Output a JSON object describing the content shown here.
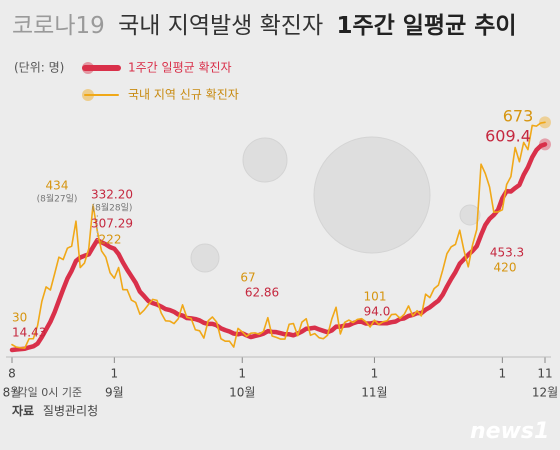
{
  "chart_data": {
    "type": "line",
    "title": {
      "prefix": "코로나19",
      "main": "국내 지역발생 확진자",
      "strong": "1주간 일평균 추이"
    },
    "unit_label": "(단위: 명)",
    "note": "*각일 0시 기준",
    "source": {
      "label": "자료",
      "text": "질병관리청"
    },
    "brand": "news1",
    "categories": [
      "08-08",
      "08-09",
      "08-10",
      "08-11",
      "08-12",
      "08-13",
      "08-14",
      "08-15",
      "08-16",
      "08-17",
      "08-18",
      "08-19",
      "08-20",
      "08-21",
      "08-22",
      "08-23",
      "08-24",
      "08-25",
      "08-26",
      "08-27",
      "08-28",
      "08-29",
      "08-30",
      "08-31",
      "09-01",
      "09-02",
      "09-03",
      "09-04",
      "09-05",
      "09-06",
      "09-07",
      "09-08",
      "09-09",
      "09-10",
      "09-11",
      "09-12",
      "09-13",
      "09-14",
      "09-15",
      "09-16",
      "09-17",
      "09-18",
      "09-19",
      "09-20",
      "09-21",
      "09-22",
      "09-23",
      "09-24",
      "09-25",
      "09-26",
      "09-27",
      "09-28",
      "09-29",
      "09-30",
      "10-01",
      "10-02",
      "10-03",
      "10-04",
      "10-05",
      "10-06",
      "10-07",
      "10-08",
      "10-09",
      "10-10",
      "10-11",
      "10-12",
      "10-13",
      "10-14",
      "10-15",
      "10-16",
      "10-17",
      "10-18",
      "10-19",
      "10-20",
      "10-21",
      "10-22",
      "10-23",
      "10-24",
      "10-25",
      "10-26",
      "10-27",
      "10-28",
      "10-29",
      "10-30",
      "10-31",
      "11-01",
      "11-02",
      "11-03",
      "11-04",
      "11-05",
      "11-06",
      "11-07",
      "11-08",
      "11-09",
      "11-10",
      "11-11",
      "11-12",
      "11-13",
      "11-14",
      "11-15",
      "11-16",
      "11-17",
      "11-18",
      "11-19",
      "11-20",
      "11-21",
      "11-22",
      "11-23",
      "11-24",
      "11-25",
      "11-26",
      "11-27",
      "11-28",
      "11-29",
      "11-30",
      "12-01",
      "12-02",
      "12-03",
      "12-04",
      "12-05",
      "12-06",
      "12-07",
      "12-08",
      "12-09",
      "12-10",
      "12-11"
    ],
    "series": [
      {
        "name": "1주간 일평균 확진자",
        "color": "#d9304a",
        "values": [
          14.43,
          16,
          17,
          18,
          22,
          25,
          33,
          52,
          74,
          96,
          124,
          157,
          190,
          221,
          244,
          272,
          282,
          287,
          291,
          312,
          332.2,
          326,
          320,
          312,
          307.29,
          292,
          268,
          247,
          228,
          209,
          183,
          170,
          156,
          150,
          146,
          140,
          133,
          130,
          125,
          117,
          114,
          107,
          106,
          104,
          100,
          93,
          90,
          90,
          86,
          77,
          72,
          68,
          62,
          60,
          62.86,
          57,
          52,
          55,
          58,
          62,
          69,
          67,
          66,
          63,
          60,
          60,
          57,
          62,
          68,
          76,
          77,
          79,
          74,
          70,
          66,
          71,
          82,
          82,
          85,
          86,
          92,
          96,
          96,
          91,
          91,
          94,
          92,
          92,
          92,
          95,
          97,
          104,
          106,
          113,
          116,
          121,
          121,
          131,
          138,
          148,
          157,
          174,
          198,
          220,
          240,
          264,
          277,
          290,
          301,
          315,
          347,
          376,
          394,
          405,
          420,
          453.3,
          474,
          473,
          483,
          492,
          521,
          543,
          572,
          593,
          605,
          609.4
        ],
        "value_labels": {
          "0": "14.43",
          "20": "332.20",
          "24": "307.29",
          "54": "62.86",
          "85": "94.0",
          "115": "453.3",
          "125": "609.4"
        },
        "label_notes": {
          "20": "(8월28일)"
        }
      },
      {
        "name": "국내 지역 신규 확진자",
        "color": "#f0a818",
        "values": [
          30,
          23,
          21,
          20,
          47,
          47,
          85,
          155,
          197,
          188,
          235,
          283,
          276,
          309,
          315,
          387,
          253,
          266,
          307,
          434,
          359,
          301,
          283,
          238,
          222,
          253,
          189,
          189,
          159,
          152,
          118,
          130,
          146,
          161,
          158,
          121,
          99,
          98,
          91,
          105,
          145,
          109,
          106,
          73,
          70,
          49,
          99,
          110,
          95,
          47,
          40,
          40,
          23,
          77,
          67,
          54,
          63,
          64,
          60,
          69,
          108,
          55,
          51,
          46,
          46,
          89,
          91,
          56,
          95,
          105,
          57,
          62,
          50,
          47,
          57,
          104,
          138,
          61,
          94,
          101,
          94,
          103,
          105,
          96,
          81,
          101,
          88,
          96,
          99,
          117,
          118,
          106,
          118,
          142,
          113,
          128,
          113,
          176,
          166,
          192,
          202,
          245,
          293,
          313,
          320,
          361,
          302,
          255,
          318,
          363,
          552,
          525,
          486,
          413,
          414,
          420,
          493,
          516,
          600,
          559,
          615,
          594,
          664,
          662,
          671,
          673
        ],
        "value_labels": {
          "0": "30",
          "19": "434",
          "24": "222",
          "54": "67",
          "85": "101",
          "115": "420",
          "125": "673"
        },
        "label_notes": {
          "19": "(8월27일)"
        }
      }
    ],
    "ylim": [
      0,
      700
    ],
    "xticks": [
      {
        "value": "08-08",
        "label": "8",
        "month": "8월"
      },
      {
        "value": "09-01",
        "label": "1",
        "month": "9월"
      },
      {
        "value": "10-01",
        "label": "1",
        "month": "10월"
      },
      {
        "value": "11-01",
        "label": "1",
        "month": "11월"
      },
      {
        "value": "12-01",
        "label": "1"
      },
      {
        "value": "12-11",
        "label": "11",
        "month": "12월"
      }
    ]
  }
}
